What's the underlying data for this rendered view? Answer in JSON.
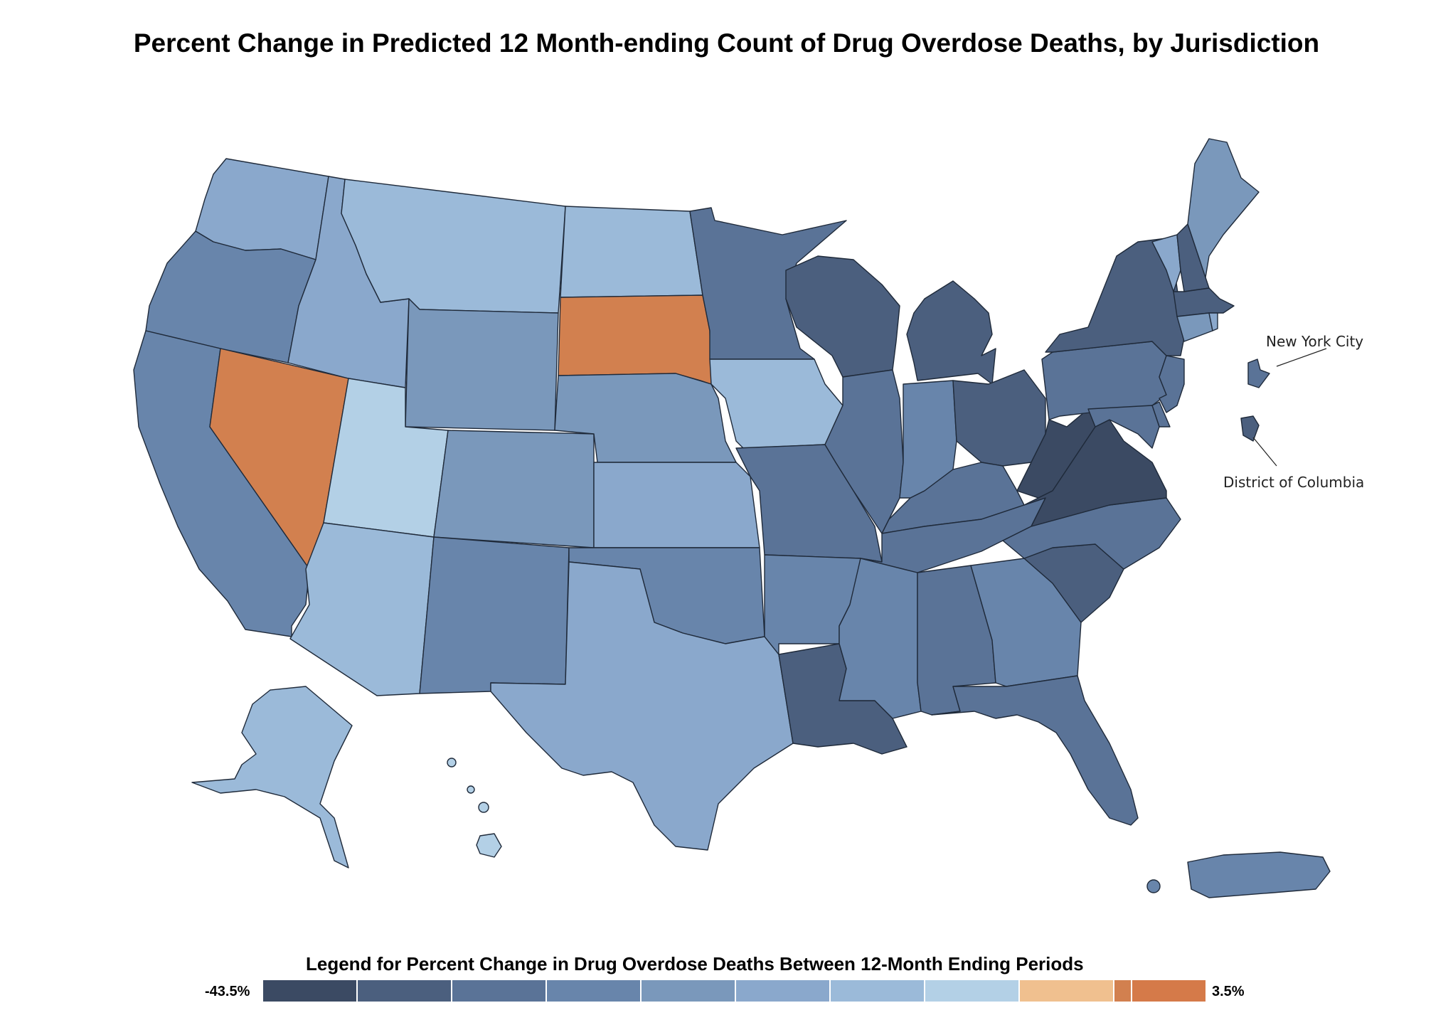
{
  "title": "Percent Change in Predicted 12 Month-ending Count of Drug Overdose Deaths, by Jurisdiction",
  "labels": {
    "nyc": "New York City",
    "dc": "District of Columbia"
  },
  "legend": {
    "title": "Legend for Percent Change in Drug Overdose Deaths Between 12-Month Ending Periods",
    "min_label": "-43.5%",
    "max_label": "3.5%",
    "swatches": [
      "#3b4a63",
      "#4b5f7e",
      "#5a7397",
      "#6885ab",
      "#7a98bb",
      "#8aa8cc",
      "#9bbad9",
      "#b3d0e6",
      "#f0c08f",
      "#d2804f",
      "#d57a49"
    ]
  },
  "colors": {
    "c1": "#3b4a63",
    "c2": "#4b5f7e",
    "c3": "#5a7397",
    "c4": "#6885ab",
    "c5": "#7a98bb",
    "c6": "#8aa8cc",
    "c7": "#9bbad9",
    "c8": "#b3d0e6",
    "orange": "#d2804f"
  },
  "states": {
    "WA": "c6",
    "OR": "c4",
    "CA": "c4",
    "NV": "orange",
    "ID": "c6",
    "MT": "c7",
    "WY": "c5",
    "UT": "c8",
    "AZ": "c7",
    "CO": "c5",
    "NM": "c4",
    "ND": "c7",
    "SD": "orange",
    "NE": "c5",
    "KS": "c6",
    "OK": "c4",
    "TX": "c6",
    "MN": "c3",
    "IA": "c7",
    "MO": "c3",
    "AR": "c4",
    "LA": "c2",
    "WI": "c2",
    "IL": "c3",
    "MS": "c4",
    "MI": "c2",
    "IN": "c4",
    "KY": "c3",
    "TN": "c3",
    "AL": "c3",
    "OH": "c2",
    "WV": "c1",
    "VA": "c1",
    "NC": "c3",
    "SC": "c2",
    "GA": "c4",
    "FL": "c3",
    "PA": "c3",
    "NY": "c2",
    "VT": "c6",
    "NH": "c2",
    "ME": "c5",
    "MA": "c2",
    "CT": "c5",
    "RI": "c6",
    "NJ": "c3",
    "DE": "c3",
    "MD": "c3",
    "NYC": "c3",
    "DC": "c2",
    "AK": "c7",
    "HI": "c8",
    "PR": "c4"
  }
}
